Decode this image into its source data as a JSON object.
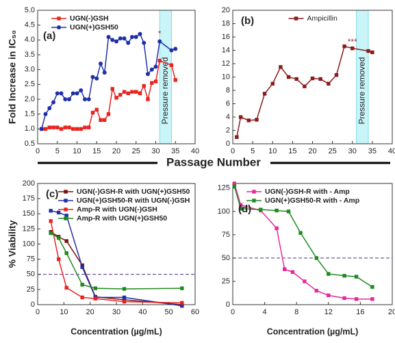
{
  "shared_xlabel": "Passage Number",
  "chart_data": [
    {
      "type": "line",
      "label": "(a)",
      "ylabel": "Fold Increase in IC₅₀",
      "legend": "upper left",
      "xlim": [
        0,
        40
      ],
      "xticks": [
        0,
        5,
        10,
        15,
        20,
        25,
        30,
        35,
        40
      ],
      "ylim": [
        0.5,
        5.0
      ],
      "yticks": [
        0.5,
        {
          "value": 1,
          "label": "1.0"
        },
        1.5,
        {
          "value": 2,
          "label": "2.0"
        },
        2.5,
        {
          "value": 3,
          "label": "3.0"
        },
        3.5,
        {
          "value": 4,
          "label": "4.0"
        },
        4.5,
        {
          "value": 5,
          "label": "5.0"
        }
      ],
      "shade": [
        31,
        34
      ],
      "shade_label": "Pressure removed",
      "annotations": [
        {
          "text": "*",
          "x": 31,
          "y": 4.2
        }
      ],
      "series": [
        {
          "name": "UGN(-)GSH",
          "color": "#e8231f",
          "marker": "square",
          "x": [
            1,
            2,
            3,
            4,
            5,
            6,
            7,
            8,
            9,
            10,
            11,
            12,
            13,
            14,
            15,
            16,
            17,
            18,
            19,
            20,
            21,
            22,
            23,
            24,
            25,
            26,
            27,
            28,
            29,
            30,
            31,
            34,
            35
          ],
          "values": [
            1.0,
            1.0,
            1.05,
            1.05,
            1.05,
            1.0,
            1.05,
            1.05,
            1.0,
            1.0,
            1.0,
            1.05,
            1.05,
            1.55,
            1.65,
            1.3,
            1.3,
            1.5,
            2.35,
            2.05,
            2.15,
            2.25,
            2.2,
            2.25,
            2.25,
            2.2,
            2.45,
            2.0,
            2.55,
            2.6,
            3.3,
            3.15,
            2.65
          ]
        },
        {
          "name": "UGN(+)GSH50",
          "color": "#1f2fa8",
          "marker": "circle",
          "x": [
            1,
            2,
            3,
            4,
            5,
            6,
            7,
            8,
            9,
            10,
            11,
            12,
            13,
            14,
            15,
            16,
            17,
            18,
            19,
            20,
            21,
            22,
            23,
            24,
            25,
            26,
            27,
            28,
            29,
            30,
            31,
            34,
            35
          ],
          "values": [
            1.0,
            1.5,
            1.7,
            1.9,
            2.2,
            2.2,
            2.0,
            2.0,
            2.2,
            2.2,
            2.3,
            2.0,
            2.0,
            2.75,
            2.7,
            3.2,
            2.9,
            4.1,
            4.0,
            3.95,
            4.05,
            4.05,
            3.9,
            4.1,
            4.1,
            4.2,
            3.9,
            2.85,
            3.0,
            3.1,
            3.95,
            3.65,
            3.7
          ]
        }
      ]
    },
    {
      "type": "line",
      "label": "(b)",
      "legend": "upper center",
      "xlim": [
        0,
        40
      ],
      "xticks": [
        0,
        5,
        10,
        15,
        20,
        25,
        30,
        35,
        40
      ],
      "ylim": [
        0,
        20
      ],
      "yticks": [
        0,
        2,
        4,
        6,
        8,
        10,
        12,
        14,
        16,
        18,
        20
      ],
      "shade": [
        31,
        34
      ],
      "shade_label": "Pressure removed",
      "annotations": [
        {
          "text": "***",
          "x": 30,
          "y": 15.2
        }
      ],
      "series": [
        {
          "name": "Ampicillin",
          "color": "#8b1a1a",
          "marker": "square",
          "x": [
            1,
            2,
            4,
            6,
            8,
            10,
            12,
            14,
            16,
            18,
            20,
            22,
            24,
            26,
            28,
            30,
            34,
            35
          ],
          "values": [
            1.0,
            4.0,
            3.5,
            3.6,
            7.5,
            9.0,
            11.5,
            10.0,
            9.7,
            8.6,
            9.8,
            9.7,
            9.0,
            10.3,
            14.6,
            14.3,
            13.9,
            13.7
          ]
        }
      ]
    },
    {
      "type": "line",
      "label": "(c)",
      "ylabel": "% Viability",
      "xlabel": "Concentration (µg/mL)",
      "legend": "upper right",
      "xlim": [
        0,
        60
      ],
      "xticks": [
        0,
        10,
        20,
        30,
        40,
        50,
        60
      ],
      "ylim": [
        0,
        200
      ],
      "yticks": [
        0,
        25,
        50,
        75,
        100,
        125,
        150,
        175,
        200
      ],
      "hline": 50,
      "series": [
        {
          "name": "UGN(-)GSH-R with UGN(+)GSH50",
          "color": "#7a1010",
          "marker": "square",
          "x": [
            5,
            8,
            11,
            17,
            22,
            33,
            55
          ],
          "values": [
            120,
            112,
            105,
            65,
            13,
            8,
            0
          ]
        },
        {
          "name": "UGN(+)GSH50-R with UGN(-)GSH",
          "color": "#1f2fa8",
          "marker": "square",
          "x": [
            5,
            8,
            11,
            17,
            22,
            33,
            55
          ],
          "values": [
            155,
            152,
            147,
            62,
            12,
            12,
            -2
          ]
        },
        {
          "name": "Amp-R with UGN(-)GSH",
          "color": "#e8231f",
          "marker": "square",
          "x": [
            5,
            8,
            11,
            17,
            22,
            33,
            55
          ],
          "values": [
            138,
            75,
            28,
            12,
            10,
            5,
            3
          ]
        },
        {
          "name": "Amp-R with UGN(+)GSH50",
          "color": "#1e8a1e",
          "marker": "square",
          "x": [
            5,
            8,
            11,
            17,
            22,
            33,
            55
          ],
          "values": [
            118,
            110,
            85,
            33,
            27,
            26,
            27
          ]
        }
      ]
    },
    {
      "type": "line",
      "label": "(d)",
      "xlabel": "Concentration (µg/mL)",
      "legend": "upper left",
      "xlim": [
        0,
        20
      ],
      "xticks": [
        0,
        4,
        8,
        12,
        16,
        20
      ],
      "ylim": [
        0,
        130
      ],
      "yticks": [
        0,
        25,
        50,
        75,
        100,
        125
      ],
      "hline": 50,
      "series": [
        {
          "name": "UGN(-)GSH-R with - Amp",
          "color": "#e8279b",
          "marker": "square",
          "x": [
            0.2,
            1,
            3.5,
            5.5,
            6.5,
            7.5,
            9,
            10.5,
            12,
            14,
            15.5,
            17.5
          ],
          "values": [
            130,
            107,
            101,
            82,
            38,
            35,
            25,
            15,
            10,
            7,
            6,
            6
          ]
        },
        {
          "name": "UGN(+)GSH50-R with - Amp",
          "color": "#1e8a1e",
          "marker": "square",
          "x": [
            0.2,
            1,
            3.5,
            5.5,
            7,
            8.5,
            10.5,
            12,
            14,
            15.5,
            17.5
          ],
          "values": [
            127,
            103,
            102,
            101,
            100,
            77,
            50,
            33,
            31,
            30,
            19
          ]
        }
      ]
    }
  ]
}
